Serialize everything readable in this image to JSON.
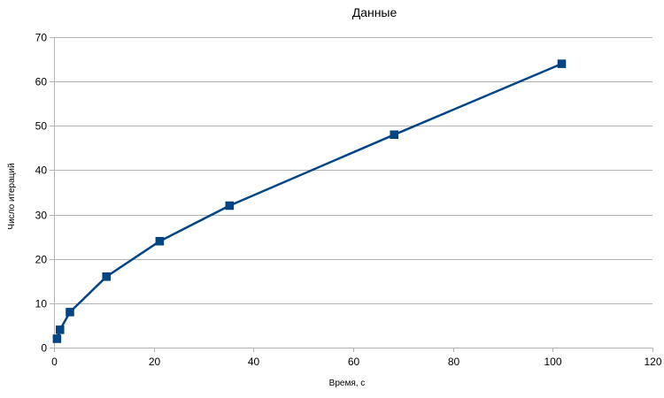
{
  "chart_data": {
    "type": "line",
    "title": "Данные",
    "xlabel": "Время, с",
    "ylabel": "Число итераций",
    "xlim": [
      0,
      120
    ],
    "ylim": [
      0,
      70
    ],
    "x_ticks": [
      "0",
      "20",
      "40",
      "60",
      "80",
      "100",
      "120"
    ],
    "y_ticks": [
      "0",
      "10",
      "20",
      "30",
      "40",
      "50",
      "60",
      "70"
    ],
    "grid": "horizontal",
    "legend": "none",
    "series": [
      {
        "marker": "square",
        "color": "#004586",
        "points": [
          {
            "x": 0.6,
            "y": 2
          },
          {
            "x": 1.2,
            "y": 4
          },
          {
            "x": 3.2,
            "y": 8
          },
          {
            "x": 10.5,
            "y": 16
          },
          {
            "x": 21.2,
            "y": 24
          },
          {
            "x": 35.2,
            "y": 32
          },
          {
            "x": 68.2,
            "y": 48
          },
          {
            "x": 101.8,
            "y": 64
          }
        ]
      }
    ]
  }
}
